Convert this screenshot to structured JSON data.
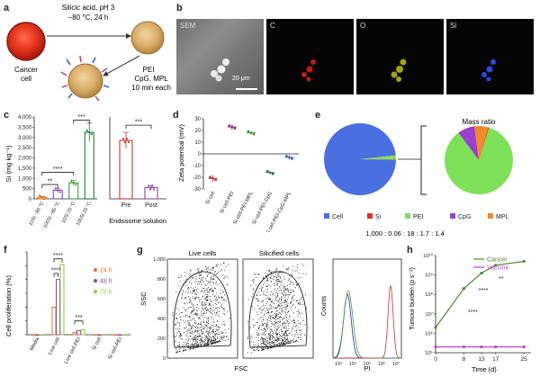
{
  "panel_letters": {
    "a": "a",
    "b": "b",
    "c": "c",
    "d": "d",
    "e": "e",
    "f": "f",
    "g": "g",
    "h": "h"
  },
  "panel_a": {
    "cell_label_1": "Cancer",
    "cell_label_2": "cell",
    "step1_line1": "Silicic acid, pH 3",
    "step1_line2": "−80 °C, 24 h",
    "step2_line1": "PEI",
    "step2_line2": "CpG, MPL",
    "step2_line3": "10 min each"
  },
  "panel_b": {
    "sem_label": "SEM",
    "scale_bar": "20 μm",
    "channels": [
      "C",
      "O",
      "Si"
    ],
    "colors": {
      "C": "#e02020",
      "O": "#d8d820",
      "Si": "#3050ff"
    }
  },
  "chart_data": [
    {
      "id": "c-left",
      "type": "bar",
      "ylabel": "Si (mg kg⁻¹)",
      "yticks": [
        "0",
        "500",
        "1,000",
        "1,500",
        "2,000",
        "2,500",
        "3,000",
        "3,500",
        "4,000"
      ],
      "ylim": [
        0,
        4000
      ],
      "categories": [
        "10Si −80 °C",
        "100Si −80 °C",
        "10Si 20 °C",
        "100Si 20 °C"
      ],
      "values": [
        80,
        420,
        780,
        3250
      ],
      "errors": [
        40,
        100,
        130,
        450
      ],
      "colors": [
        "#d2691e",
        "#8e44ad",
        "#3a9b3a",
        "#1f7a3c"
      ],
      "significance": [
        "**",
        "****",
        "***"
      ]
    },
    {
      "id": "c-right",
      "type": "bar",
      "xlabel": "Endosome solution",
      "categories": [
        "Pre",
        "Post"
      ],
      "values": [
        57,
        11
      ],
      "errors": [
        8,
        2
      ],
      "colors": [
        "#c0392b",
        "#8e44ad"
      ],
      "significance": [
        "***"
      ]
    },
    {
      "id": "d",
      "type": "scatter",
      "ylabel": "Zeta potential (mV)",
      "yticks": [
        "-30",
        "-20",
        "-10",
        "0",
        "10",
        "20",
        "30"
      ],
      "ylim": [
        -30,
        30
      ],
      "categories": [
        "Si cell",
        "Si cell-PEI",
        "Si cell-PEI-MPL",
        "Si cell-PEI-CpG",
        "Si cell-PEI-CpG-MPL"
      ],
      "values": [
        -21,
        23,
        18,
        -16,
        -3
      ],
      "errors": [
        3,
        2.5,
        1,
        1,
        2
      ],
      "colors": [
        "#c0392b",
        "#8e2c8e",
        "#3a9b3a",
        "#1f7a5c",
        "#5060c0"
      ]
    },
    {
      "id": "e",
      "type": "pie",
      "title": "Mass ratio",
      "legend": [
        "Cell",
        "Si",
        "PEI",
        "CpG",
        "MPL"
      ],
      "legend_colors": [
        "#4a6fe0",
        "#e03020",
        "#7fe05a",
        "#9b3fd0",
        "#f08a2a"
      ],
      "ratio_text": "1,000 : 0.06 : 18 : 1.7 : 1.4",
      "values": [
        1000,
        0.06,
        18,
        1.7,
        1.4
      ]
    },
    {
      "id": "f",
      "type": "bar",
      "ylabel": "Cell proliferation (%)",
      "ylim": [
        0,
        300
      ],
      "categories": [
        "Media",
        "Live cell",
        "Live cell-PEI",
        "Si cell",
        "Si cell-PEI"
      ],
      "series": [
        {
          "name": "24 h",
          "values": [
            0,
            100,
            8,
            0,
            0
          ],
          "color": "#e07030"
        },
        {
          "name": "48 h",
          "values": [
            0,
            200,
            15,
            0,
            0
          ],
          "color": "#8e44ad"
        },
        {
          "name": "72 h",
          "values": [
            0,
            255,
            18,
            0,
            0
          ],
          "color": "#8ac43a"
        }
      ],
      "significance": [
        "****",
        "****",
        "***"
      ]
    },
    {
      "id": "g",
      "type": "scatter",
      "xlabel": "FSC",
      "ylabel": "SSC",
      "yticks": [
        "0",
        "200",
        "400",
        "600",
        "800",
        "1,000"
      ],
      "ylim": [
        0,
        1000
      ],
      "panels": [
        "Live cells",
        "Silicified cells"
      ]
    },
    {
      "id": "g-hist",
      "type": "line",
      "xlabel": "PI",
      "ylabel": "Counts",
      "xticks": [
        "10³",
        "10⁴",
        "10⁵",
        "10⁶",
        "10⁷"
      ]
    },
    {
      "id": "h",
      "type": "line",
      "xlabel": "Time (d)",
      "ylabel": "Tumour burden (p s⁻¹)",
      "x": [
        0,
        8,
        13,
        17,
        25
      ],
      "xticks": [
        "0",
        "8",
        "13",
        "17",
        "25"
      ],
      "yticks": [
        "10⁵",
        "10⁶",
        "10⁷",
        "10⁸",
        "10⁹",
        "10¹⁰"
      ],
      "ylim_log": [
        5,
        10
      ],
      "series": [
        {
          "name": "Cancer",
          "values": [
            6.3,
            8.3,
            9.1,
            9.5,
            9.7
          ],
          "color": "#4a8a2a"
        },
        {
          "name": "Vaccine",
          "values": [
            5.3,
            5.3,
            5.3,
            5.3,
            5.3
          ],
          "color": "#c040c0"
        }
      ],
      "significance": [
        "****",
        "****",
        "**"
      ]
    }
  ]
}
